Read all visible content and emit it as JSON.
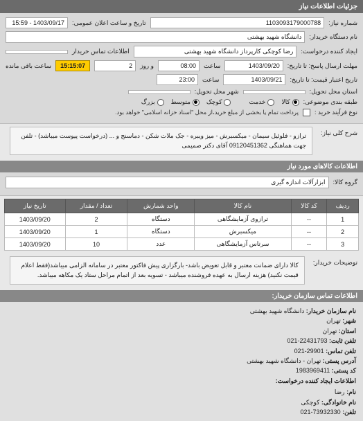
{
  "panel_title": "جزئیات اطلاعات نیاز",
  "header": {
    "req_no_label": "شماره نیاز:",
    "req_no": "1103093179000788",
    "announce_label": "تاریخ و ساعت اعلان عمومی:",
    "announce_value": "1403/09/17 - 15:59",
    "buyer_org_label": "نام دستگاه خریدار:",
    "buyer_org": "دانشگاه شهید بهشتی",
    "requester_label": "ایجاد کننده درخواست:",
    "requester": "رضا کوچکی کارپرداز دانشگاه شهید بهشتی",
    "buyer_contact_label": "اطلاعات تماس خریدار",
    "buyer_contact": "",
    "deadline_from_label": "مهلت ارسال پاسخ: تا تاریخ:",
    "deadline_date": "1403/09/20",
    "time_label": "ساعت",
    "deadline_time": "08:00",
    "days_label": "و روز",
    "days_value": "2",
    "remain_label": "ساعت باقی مانده",
    "countdown": "15:15:07",
    "validity_label": "تاریخ اعتبار قیمت: تا تاریخ:",
    "validity_date": "1403/09/21",
    "validity_time": "23:00",
    "delivery_addr_label": "استان محل تحویل:",
    "delivery_addr": "",
    "city_label": "شهر محل تحویل:",
    "city": "",
    "pkg_label": "طبقه بندی موضوعی:",
    "pkg_opt_all": "کالا",
    "pkg_opt_part": "خدمت",
    "scale_opt_sm": "کوچک",
    "scale_opt_md": "متوسط",
    "scale_opt_lg": "بزرگ",
    "pay_label": "نوع فرآیند خرید :",
    "pay_note": "پرداخت تمام یا بخشی از مبلغ خرید،از محل \"اسناد خزانه اسلامی\" خواهد بود.",
    "desc_label": "شرح کلی نیاز:",
    "desc_text": "ترازو - فلوئیل سیمان - میکسبرش - میز ویبره - جک ملات شکن - دماسنج و ... (درخواست پیوست میباشد) - تلفن جهت هماهنگی 09120451362 آقای دکتر صمیمی"
  },
  "goods": {
    "section_title": "اطلاعات کالاهای مورد نیاز",
    "group_label": "گروه کالا:",
    "group_value": "ابزارآلات اندازه گیری",
    "columns": [
      "ردیف",
      "کد کالا",
      "نام کالا",
      "واحد شمارش",
      "تعداد / مقدار",
      "تاریخ نیاز"
    ],
    "rows": [
      [
        "1",
        "--",
        "ترازوی آزمایشگاهی",
        "دستگاه",
        "2",
        "1403/09/20"
      ],
      [
        "2",
        "--",
        "میکسبرش",
        "دستگاه",
        "1",
        "1403/09/20"
      ],
      [
        "3",
        "--",
        "سرتاس آزمایشگاهی",
        "عدد",
        "10",
        "1403/09/20"
      ]
    ],
    "notes_label": "توضیحات خریدار:",
    "notes_text": "کالا دارای ضمانت معتبر و قابل تعویض باشد- بارگزاری پیش فاکتور معتبر در سامانه الزامی میباشد(فقط اعلام قیمت نکنید) هزینه ارسال به عهده فروشنده میباشد - تسویه بعد از اتمام مراحل ستاد یک مکاهه میباشد."
  },
  "contact": {
    "section_title": "اطلاعات تماس سازمان خریدار:",
    "org_label": "نام سازمان خریدار:",
    "org": "دانشگاه شهید بهشتی",
    "city_label": "شهر:",
    "city": "تهران",
    "province_label": "استان:",
    "province": "تهران",
    "phone_label": "تلفن ثابت:",
    "phone": "22431793-021",
    "fax_label": "تلفن تماس:",
    "fax": "29901-021",
    "address_label": "آدرس پستی:",
    "address": "تهران - دانشگاه شهید بهشتی",
    "postal_label": "کد پستی:",
    "postal": "1983969411",
    "creator_section": "اطلاعات ایجاد کننده درخواست:",
    "name_label": "نام:",
    "name": "رضا",
    "family_label": "نام خانوادگی:",
    "family": "کوچکی",
    "tel_label": "تلفن:",
    "tel": "73932330-021"
  }
}
